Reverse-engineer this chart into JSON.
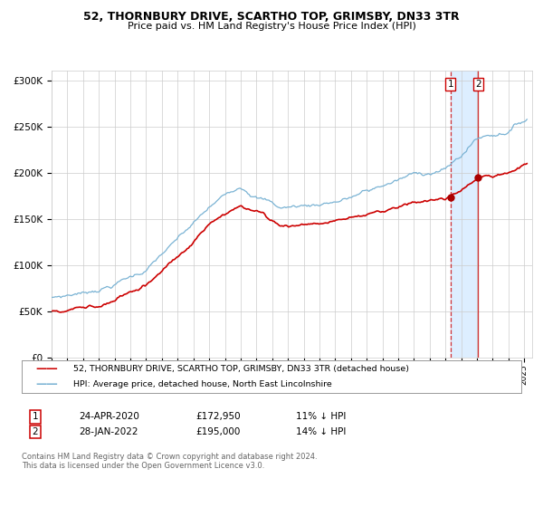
{
  "title": "52, THORNBURY DRIVE, SCARTHO TOP, GRIMSBY, DN33 3TR",
  "subtitle": "Price paid vs. HM Land Registry's House Price Index (HPI)",
  "ylabel_ticks": [
    "£0",
    "£50K",
    "£100K",
    "£150K",
    "£200K",
    "£250K",
    "£300K"
  ],
  "ytick_vals": [
    0,
    50000,
    100000,
    150000,
    200000,
    250000,
    300000
  ],
  "ylim": [
    0,
    310000
  ],
  "xlim_start": 1995.0,
  "xlim_end": 2025.5,
  "hpi_color": "#7ab3d4",
  "price_color": "#cc0000",
  "marker_color": "#aa0000",
  "vline1_color": "#cc0000",
  "vline2_color": "#cc0000",
  "shade_color": "#ddeeff",
  "transaction1_date": 2020.31,
  "transaction1_price": 172950,
  "transaction2_date": 2022.08,
  "transaction2_price": 195000,
  "legend1": "52, THORNBURY DRIVE, SCARTHO TOP, GRIMSBY, DN33 3TR (detached house)",
  "legend2": "HPI: Average price, detached house, North East Lincolnshire",
  "table_row1_label": "1",
  "table_row1_date": "24-APR-2020",
  "table_row1_price": "£172,950",
  "table_row1_hpi": "11% ↓ HPI",
  "table_row2_label": "2",
  "table_row2_date": "28-JAN-2022",
  "table_row2_price": "£195,000",
  "table_row2_hpi": "14% ↓ HPI",
  "footnote": "Contains HM Land Registry data © Crown copyright and database right 2024.\nThis data is licensed under the Open Government Licence v3.0.",
  "background_color": "#ffffff",
  "grid_color": "#cccccc"
}
